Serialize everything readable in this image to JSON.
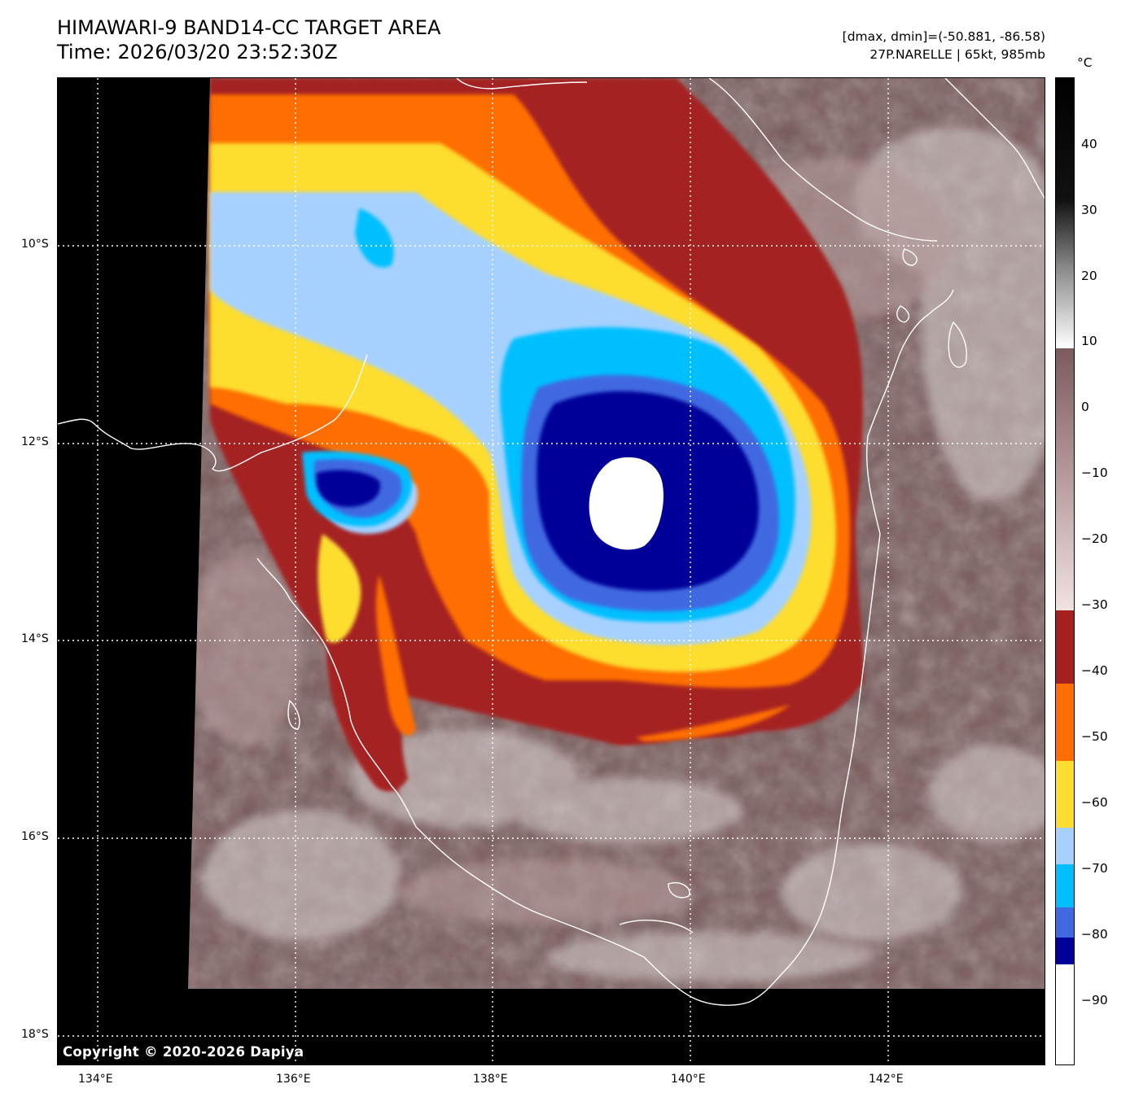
{
  "title": {
    "line1": "HIMAWARI-9 BAND14-CC TARGET AREA",
    "line2": "Time: 2026/03/20 23:52:30Z"
  },
  "info": {
    "range": "[dmax, dmin]=(-50.881, -86.58)",
    "storm": "27P.NARELLE | 65kt, 985mb"
  },
  "copyright": "Copyright © 2020-2026 Dapiya",
  "colorbar": {
    "unit": "°C",
    "ticks": [
      "40",
      "30",
      "20",
      "10",
      "0",
      "−10",
      "−20",
      "−30",
      "−40",
      "−50",
      "−60",
      "−70",
      "−80",
      "−90"
    ],
    "colors": {
      "below_-85": "#ffffff",
      "-85_-80": "#000099",
      "-80_-75": "#4169e1",
      "-75_-70": "#00bfff",
      "-70_-65": "#a6d1ff",
      "-65_-55": "#fddd2d",
      "-55_-45": "#ff6e00",
      "-45_-35": "#a52120",
      "-35_10": "#7a5a5a",
      "above_10": "#000000"
    }
  },
  "axes": {
    "lat_labels": [
      "10°S",
      "12°S",
      "14°S",
      "16°S",
      "18°S"
    ],
    "lon_labels": [
      "134°E",
      "136°E",
      "138°E",
      "140°E",
      "142°E"
    ]
  },
  "map_features": {
    "storm_center": {
      "lon": 139.2,
      "lat": -12.7
    },
    "eye_min_temp_c": -86.58
  }
}
